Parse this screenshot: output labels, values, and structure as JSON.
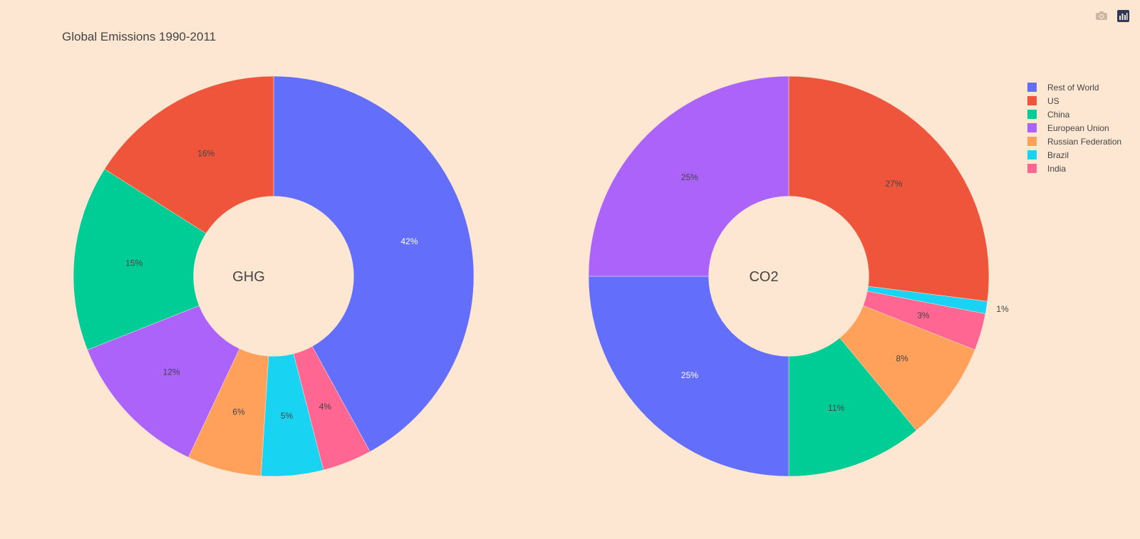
{
  "toolbar": {
    "download_icon": "camera-icon",
    "plotly_icon": "plotly-logo-icon"
  },
  "chart_data": {
    "type": "pie",
    "title": "Global Emissions 1990-2011",
    "hole": 0.4,
    "label_colors": {
      "dark": "#444444",
      "light": "#ffffff"
    },
    "legend": {
      "position": "top-right",
      "entries": [
        {
          "label": "Rest of World",
          "color": "#636efa"
        },
        {
          "label": "US",
          "color": "#ef553b"
        },
        {
          "label": "China",
          "color": "#00cc96"
        },
        {
          "label": "European Union",
          "color": "#ab63fa"
        },
        {
          "label": "Russian Federation",
          "color": "#ffa15a"
        },
        {
          "label": "Brazil",
          "color": "#19d3f3"
        },
        {
          "label": "India",
          "color": "#ff6692"
        }
      ]
    },
    "pies": [
      {
        "name": "GHG",
        "center_text": "GHG",
        "slices": [
          {
            "label": "Rest of World",
            "value": 42,
            "text": "42%"
          },
          {
            "label": "India",
            "value": 4,
            "text": "4%"
          },
          {
            "label": "Brazil",
            "value": 5,
            "text": "5%"
          },
          {
            "label": "Russian Federation",
            "value": 6,
            "text": "6%"
          },
          {
            "label": "European Union",
            "value": 12,
            "text": "12%"
          },
          {
            "label": "China",
            "value": 15,
            "text": "15%"
          },
          {
            "label": "US",
            "value": 16,
            "text": "16%"
          }
        ]
      },
      {
        "name": "CO2",
        "center_text": "CO2",
        "slices": [
          {
            "label": "US",
            "value": 27,
            "text": "27%"
          },
          {
            "label": "Brazil",
            "value": 1,
            "text": "1%"
          },
          {
            "label": "India",
            "value": 3,
            "text": "3%"
          },
          {
            "label": "Russian Federation",
            "value": 8,
            "text": "8%"
          },
          {
            "label": "China",
            "value": 11,
            "text": "11%"
          },
          {
            "label": "Rest of World",
            "value": 25,
            "text": "25%"
          },
          {
            "label": "European Union",
            "value": 25,
            "text": "25%"
          }
        ]
      }
    ]
  }
}
